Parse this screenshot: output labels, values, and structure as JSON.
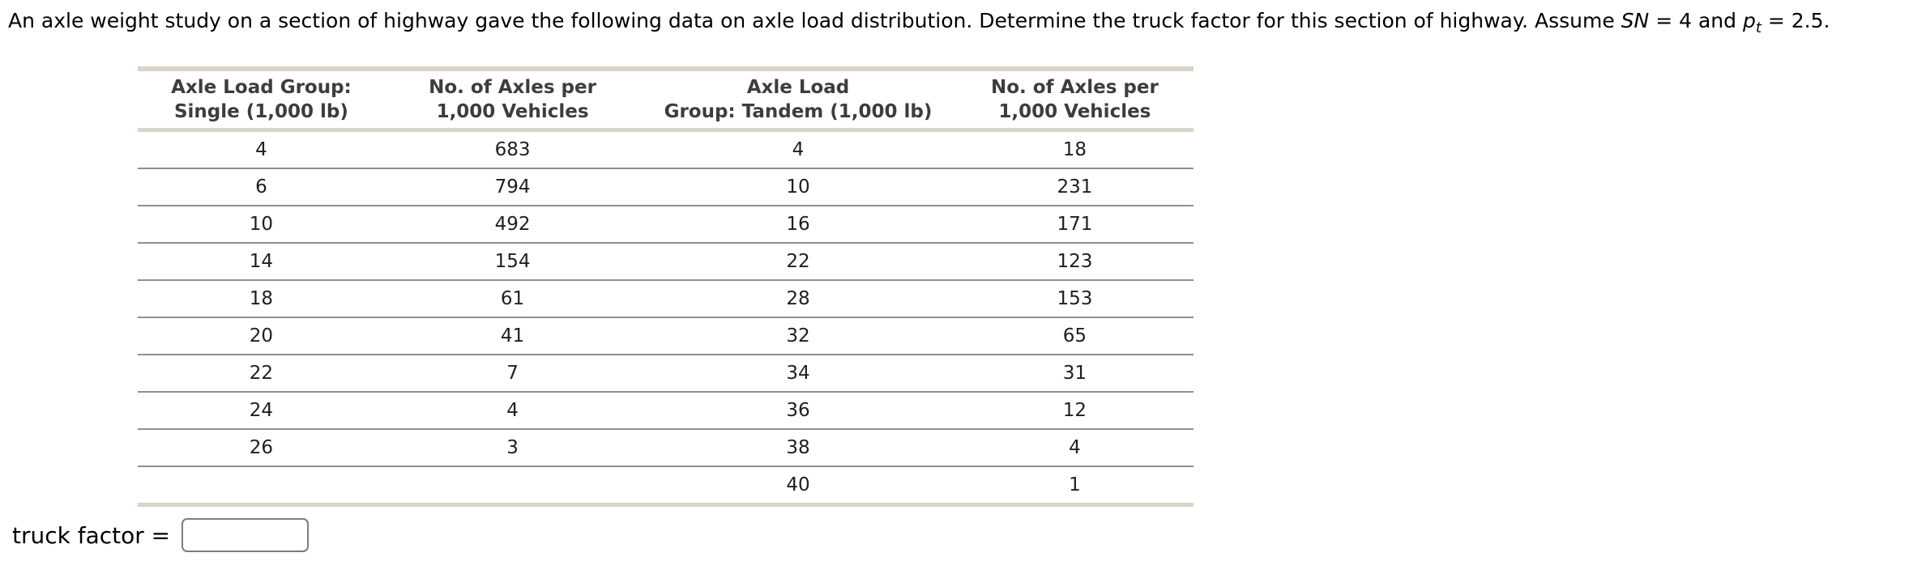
{
  "title": {
    "part1": "An axle weight study on a section of highway gave the following data on axle load distribution. Determine the truck factor for this section of highway. Assume ",
    "sn_var": "SN",
    "part2": " = 4 and ",
    "p_var": "p",
    "p_sub": "t",
    "part3": " = 2.5."
  },
  "table": {
    "headers": [
      {
        "line1": "Axle Load Group:",
        "line2": "Single (1,000 lb)"
      },
      {
        "line1": "No. of Axles per",
        "line2": "1,000 Vehicles"
      },
      {
        "line1": "Axle Load",
        "line2": "Group: Tandem (1,000 lb)"
      },
      {
        "line1": "No. of Axles per",
        "line2": "1,000 Vehicles"
      }
    ],
    "rows": [
      [
        "4",
        "683",
        "4",
        "18"
      ],
      [
        "6",
        "794",
        "10",
        "231"
      ],
      [
        "10",
        "492",
        "16",
        "171"
      ],
      [
        "14",
        "154",
        "22",
        "123"
      ],
      [
        "18",
        "61",
        "28",
        "153"
      ],
      [
        "20",
        "41",
        "32",
        "65"
      ],
      [
        "22",
        "7",
        "34",
        "31"
      ],
      [
        "24",
        "4",
        "36",
        "12"
      ],
      [
        "26",
        "3",
        "38",
        "4"
      ],
      [
        "",
        "",
        "40",
        "1"
      ]
    ]
  },
  "answer": {
    "label": "truck factor =",
    "input_value": ""
  },
  "colors": {
    "table_accent_border": "#d8d4ca",
    "row_separator": "#8e8e96",
    "header_text": "#3d3d3d",
    "body_text": "#1f1f1f",
    "input_border": "#7d7d7d"
  }
}
